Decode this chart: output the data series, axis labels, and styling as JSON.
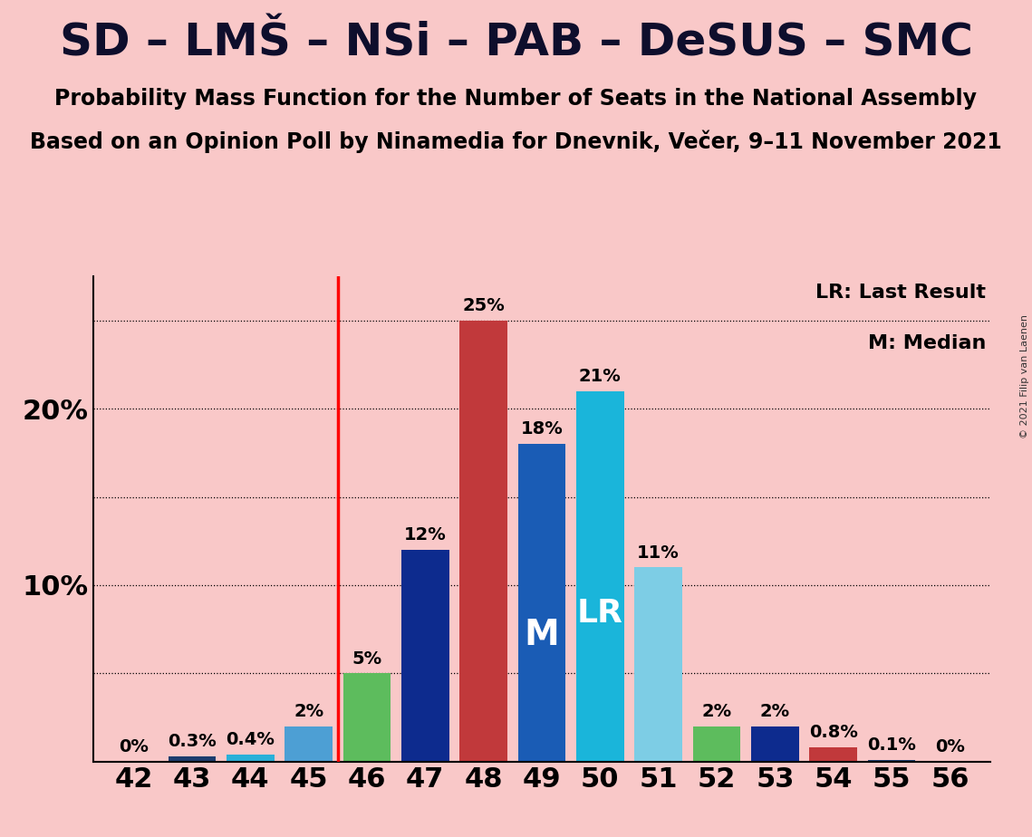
{
  "title": "SD – LMŠ – NSi – PAB – DeSUS – SMC",
  "subtitle1": "Probability Mass Function for the Number of Seats in the National Assembly",
  "subtitle2": "Based on an Opinion Poll by Ninamedia for Dnevnik, Večer, 9–11 November 2021",
  "copyright": "© 2021 Filip van Laenen",
  "seats": [
    42,
    43,
    44,
    45,
    46,
    47,
    48,
    49,
    50,
    51,
    52,
    53,
    54,
    55,
    56
  ],
  "values": [
    0.0,
    0.3,
    0.4,
    2.0,
    5.0,
    12.0,
    25.0,
    18.0,
    21.0,
    11.0,
    2.0,
    2.0,
    0.8,
    0.1,
    0.0
  ],
  "colors": [
    "#1c3d6e",
    "#1c3d6e",
    "#2ab0d8",
    "#4d9fd4",
    "#5dbc5d",
    "#0d2b8e",
    "#c1393b",
    "#1a5cb5",
    "#1ab5da",
    "#7dcde5",
    "#5dbc5d",
    "#0d2b8e",
    "#c1393b",
    "#1c3d6e",
    "#1c3d6e"
  ],
  "bar_labels": [
    "0%",
    "0.3%",
    "0.4%",
    "2%",
    "5%",
    "12%",
    "25%",
    "18%",
    "21%",
    "11%",
    "2%",
    "2%",
    "0.8%",
    "0.1%",
    "0%"
  ],
  "lr_seat": 50,
  "median_seat": 49,
  "vline_x": 45.5,
  "background_color": "#f9c8c8",
  "ylim_max": 27.5,
  "legend_lr": "LR: Last Result",
  "legend_m": "M: Median",
  "title_fontsize": 36,
  "subtitle_fontsize": 17,
  "tick_fontsize": 22,
  "label_fontsize": 14,
  "legend_fontsize": 16,
  "bar_width": 0.82
}
